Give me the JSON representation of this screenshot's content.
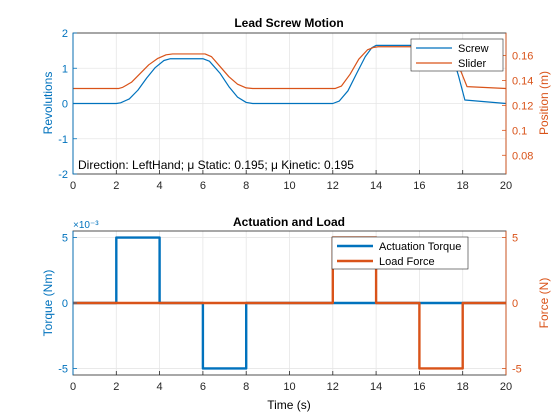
{
  "chart_data": [
    {
      "type": "line",
      "title": "Lead Screw Motion",
      "xlabel": "",
      "ylabel_left": "Revolutions",
      "ylabel_right": "Position (m)",
      "xlim": [
        0,
        20
      ],
      "ylim_left": [
        -2,
        2
      ],
      "ylim_right": [
        0.065,
        0.178
      ],
      "xticks": [
        0,
        2,
        4,
        6,
        8,
        10,
        12,
        14,
        16,
        18,
        20
      ],
      "yticks_left": [
        -2,
        -1,
        0,
        1,
        2
      ],
      "yticks_right": [
        0.08,
        0.1,
        0.12,
        0.14,
        0.16
      ],
      "grid": true,
      "legend_position": "top-right",
      "annotation": "Direction: LeftHand; μ Static: 0.195; μ Kinetic: 0.195",
      "colors": {
        "left_axis": "#0072BD",
        "right_axis": "#D95319"
      },
      "series": [
        {
          "name": "Screw",
          "axis": "left",
          "color": "#0072BD",
          "x": [
            0,
            2.0,
            2.2,
            2.6,
            3.0,
            3.4,
            3.8,
            4.2,
            4.5,
            6.0,
            6.3,
            6.8,
            7.2,
            7.6,
            8.0,
            8.3,
            12.0,
            12.3,
            12.7,
            13.1,
            13.5,
            13.8,
            14.0,
            17.2,
            17.5,
            17.8,
            18.1,
            20.0
          ],
          "y": [
            0,
            0,
            0.02,
            0.13,
            0.38,
            0.72,
            1.02,
            1.22,
            1.27,
            1.27,
            1.2,
            0.85,
            0.48,
            0.18,
            0.03,
            0,
            0,
            0.07,
            0.36,
            0.85,
            1.33,
            1.58,
            1.65,
            1.65,
            1.4,
            0.8,
            0.1,
            0
          ]
        },
        {
          "name": "Slider",
          "axis": "right",
          "color": "#D95319",
          "x": [
            0,
            2.1,
            2.3,
            2.7,
            3.1,
            3.5,
            3.9,
            4.3,
            4.6,
            6.1,
            6.4,
            6.8,
            7.2,
            7.6,
            8.0,
            8.3,
            12.1,
            12.4,
            12.8,
            13.2,
            13.6,
            13.9,
            14.1,
            17.3,
            17.6,
            17.9,
            18.2,
            20.0
          ],
          "y": [
            0.1335,
            0.1335,
            0.1345,
            0.1385,
            0.1455,
            0.1525,
            0.1575,
            0.1605,
            0.1612,
            0.1612,
            0.159,
            0.151,
            0.143,
            0.137,
            0.134,
            0.1335,
            0.1335,
            0.1355,
            0.145,
            0.157,
            0.1645,
            0.1665,
            0.167,
            0.167,
            0.161,
            0.148,
            0.135,
            0.1335
          ]
        }
      ]
    },
    {
      "type": "line",
      "title": "Actuation and Load",
      "xlabel": "Time (s)",
      "ylabel_left": "Torque (Nm)",
      "ylabel_right": "Force (N)",
      "exponent_label": "×10⁻³",
      "xlim": [
        0,
        20
      ],
      "ylim_left": [
        -0.0055,
        0.0055
      ],
      "ylim_right": [
        -5.5,
        5.5
      ],
      "xticks": [
        0,
        2,
        4,
        6,
        8,
        10,
        12,
        14,
        16,
        18,
        20
      ],
      "yticks_left": [
        -0.005,
        0,
        0.005
      ],
      "yticks_left_labels": [
        "-5",
        "0",
        "5"
      ],
      "yticks_right": [
        -5,
        0,
        5
      ],
      "grid": true,
      "legend_position": "top-right",
      "series": [
        {
          "name": "Actuation Torque",
          "axis": "left",
          "color": "#0072BD",
          "x": [
            0,
            2,
            2,
            4,
            4,
            6,
            6,
            8,
            8,
            20
          ],
          "y": [
            0,
            0,
            0.005,
            0.005,
            0,
            0,
            -0.005,
            -0.005,
            0,
            0
          ]
        },
        {
          "name": "Load Force",
          "axis": "right",
          "color": "#D95319",
          "x": [
            0,
            12,
            12,
            14,
            14,
            16,
            16,
            18,
            18,
            20
          ],
          "y": [
            0,
            0,
            5,
            5,
            0,
            0,
            -5,
            -5,
            0,
            0
          ]
        }
      ]
    }
  ]
}
